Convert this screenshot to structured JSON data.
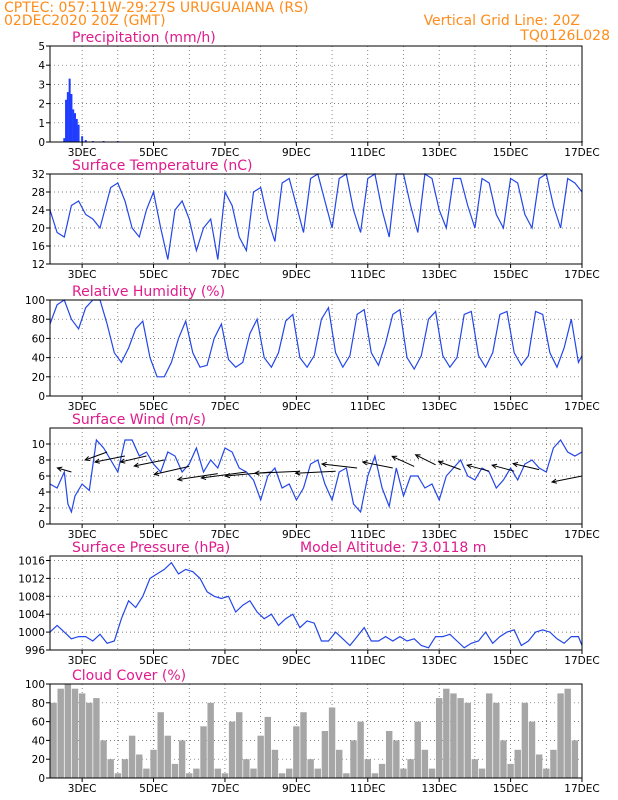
{
  "header": {
    "line1_left": "CPTEC:   057:11W-29:27S   URUGUAIANA (RS)",
    "line2_left": "02DEC2020 20Z (GMT)",
    "line1_right": "Vertical Grid Line: 20Z",
    "line2_right": "TQ0126L028"
  },
  "x_axis": {
    "ticks": [
      "3DEC",
      "5DEC",
      "7DEC",
      "9DEC",
      "11DEC",
      "13DEC",
      "15DEC",
      "17DEC"
    ],
    "tick_days": [
      3,
      5,
      7,
      9,
      11,
      13,
      15,
      17
    ],
    "start_day": 2.1,
    "end_day": 17
  },
  "chart_data": [
    {
      "type": "bar",
      "title": "Precipitation (mm/h)",
      "ylim": [
        0,
        5
      ],
      "yticks": [
        "0",
        "1",
        "2",
        "3",
        "4",
        "5"
      ],
      "color": "#1f3cff",
      "x": [
        2.5,
        2.55,
        2.6,
        2.65,
        2.7,
        2.75,
        2.8,
        2.85,
        2.9,
        3.0,
        3.1,
        3.3,
        3.6,
        4.0,
        5.0,
        8.0,
        11.0,
        14.0,
        17.0
      ],
      "values": [
        0.2,
        2.2,
        2.6,
        3.3,
        2.5,
        1.7,
        1.5,
        1.2,
        0.9,
        0.3,
        0.1,
        0.05,
        0.05,
        0.05,
        0.03,
        0.03,
        0.03,
        0.03,
        0.03
      ]
    },
    {
      "type": "line",
      "title": "Surface Temperature (nC)",
      "ylim": [
        12,
        32
      ],
      "yticks": [
        "12",
        "16",
        "20",
        "24",
        "28",
        "32"
      ],
      "color": "#2346e8",
      "x": [
        2.1,
        2.3,
        2.5,
        2.7,
        2.9,
        3.1,
        3.3,
        3.5,
        3.8,
        4.0,
        4.2,
        4.4,
        4.6,
        4.8,
        5.0,
        5.2,
        5.4,
        5.6,
        5.8,
        6.0,
        6.2,
        6.4,
        6.6,
        6.8,
        7.0,
        7.2,
        7.4,
        7.6,
        7.8,
        8.0,
        8.2,
        8.4,
        8.6,
        8.8,
        9.0,
        9.2,
        9.4,
        9.6,
        9.8,
        10.0,
        10.2,
        10.4,
        10.6,
        10.8,
        11.0,
        11.2,
        11.4,
        11.6,
        11.8,
        12.0,
        12.2,
        12.4,
        12.6,
        12.8,
        13.0,
        13.2,
        13.4,
        13.6,
        13.8,
        14.0,
        14.2,
        14.4,
        14.6,
        14.8,
        15.0,
        15.2,
        15.4,
        15.6,
        15.8,
        16.0,
        16.2,
        16.4,
        16.6,
        16.8,
        17.0
      ],
      "values": [
        24,
        19,
        18,
        25,
        26,
        23,
        22,
        20,
        29,
        30,
        26,
        20,
        18,
        24,
        28,
        20,
        13,
        24,
        26,
        22,
        15,
        20,
        22,
        13,
        28,
        25,
        18,
        15,
        28,
        29,
        22,
        17,
        30,
        31,
        25,
        19,
        31,
        32,
        26,
        20,
        31,
        32,
        24,
        19,
        31,
        32,
        24,
        18,
        32,
        32,
        25,
        19,
        32,
        31,
        24,
        20,
        31,
        31,
        25,
        20,
        31,
        30,
        23,
        20,
        31,
        30,
        23,
        20,
        31,
        32,
        25,
        20,
        31,
        30,
        28
      ]
    },
    {
      "type": "line",
      "title": "Relative Humidity (%)",
      "ylim": [
        0,
        100
      ],
      "yticks": [
        "0",
        "20",
        "40",
        "60",
        "80",
        "100"
      ],
      "color": "#2346e8",
      "x": [
        2.1,
        2.3,
        2.5,
        2.7,
        2.9,
        3.1,
        3.3,
        3.5,
        3.7,
        3.9,
        4.1,
        4.3,
        4.5,
        4.7,
        4.9,
        5.1,
        5.3,
        5.5,
        5.7,
        5.9,
        6.1,
        6.3,
        6.5,
        6.7,
        6.9,
        7.1,
        7.3,
        7.5,
        7.7,
        7.9,
        8.1,
        8.3,
        8.5,
        8.7,
        8.9,
        9.1,
        9.3,
        9.5,
        9.7,
        9.9,
        10.1,
        10.3,
        10.5,
        10.7,
        10.9,
        11.1,
        11.3,
        11.5,
        11.7,
        11.9,
        12.1,
        12.3,
        12.5,
        12.7,
        12.9,
        13.1,
        13.3,
        13.5,
        13.7,
        13.9,
        14.1,
        14.3,
        14.5,
        14.7,
        14.9,
        15.1,
        15.3,
        15.5,
        15.7,
        15.9,
        16.1,
        16.3,
        16.5,
        16.7,
        16.9,
        17.0
      ],
      "values": [
        75,
        95,
        100,
        80,
        70,
        92,
        100,
        100,
        75,
        45,
        35,
        50,
        70,
        78,
        40,
        20,
        20,
        35,
        60,
        78,
        45,
        30,
        32,
        60,
        75,
        38,
        30,
        35,
        65,
        80,
        40,
        30,
        45,
        78,
        85,
        40,
        30,
        42,
        80,
        92,
        45,
        30,
        42,
        85,
        90,
        45,
        32,
        55,
        85,
        90,
        40,
        28,
        42,
        80,
        88,
        42,
        30,
        40,
        85,
        88,
        42,
        30,
        45,
        85,
        88,
        45,
        32,
        42,
        88,
        85,
        45,
        30,
        50,
        80,
        35,
        42
      ]
    },
    {
      "type": "line",
      "title": "Surface Wind (m/s)",
      "ylim": [
        0,
        12
      ],
      "yticks": [
        "0",
        "2",
        "4",
        "6",
        "8",
        "10"
      ],
      "color": "#2346e8",
      "x": [
        2.1,
        2.3,
        2.5,
        2.6,
        2.7,
        2.8,
        3.0,
        3.2,
        3.4,
        3.6,
        3.8,
        4.0,
        4.2,
        4.4,
        4.6,
        4.8,
        5.0,
        5.2,
        5.4,
        5.6,
        5.8,
        6.0,
        6.2,
        6.4,
        6.6,
        6.8,
        7.0,
        7.2,
        7.4,
        7.6,
        7.8,
        8.0,
        8.2,
        8.4,
        8.6,
        8.8,
        9.0,
        9.2,
        9.4,
        9.6,
        9.8,
        10.0,
        10.2,
        10.4,
        10.6,
        10.8,
        11.0,
        11.2,
        11.4,
        11.6,
        11.8,
        12.0,
        12.2,
        12.4,
        12.6,
        12.8,
        13.0,
        13.2,
        13.4,
        13.6,
        13.8,
        14.0,
        14.2,
        14.4,
        14.6,
        14.8,
        15.0,
        15.2,
        15.4,
        15.6,
        15.8,
        16.0,
        16.2,
        16.4,
        16.6,
        16.8,
        17.0
      ],
      "values": [
        5,
        4.5,
        6.5,
        2.5,
        1.5,
        3.5,
        5,
        4.2,
        10.5,
        9.5,
        8,
        6.5,
        10.5,
        10.5,
        8.5,
        9,
        7.5,
        6.5,
        9,
        8.5,
        6.5,
        7.5,
        9.5,
        6.5,
        8,
        7,
        9.5,
        9,
        7,
        6.5,
        5.5,
        3,
        6,
        7,
        4.5,
        5,
        3,
        4.5,
        7.5,
        8,
        5,
        3,
        6.5,
        7,
        2.5,
        1.5,
        6,
        8.5,
        4.5,
        2.2,
        7,
        3.5,
        6,
        6,
        4.5,
        5,
        3,
        6,
        7,
        8,
        6,
        5.5,
        7,
        6.5,
        4.5,
        5.5,
        7,
        5.5,
        7.5,
        8,
        7,
        6.5,
        9.5,
        10.5,
        9,
        8.5,
        9
      ]
    },
    {
      "type": "line",
      "title": "Surface Pressure (hPa)",
      "annotation": "Model Altitude: 73.0118 m",
      "ylim": [
        996,
        1017
      ],
      "yticks": [
        "996",
        "1000",
        "1004",
        "1008",
        "1012",
        "1016"
      ],
      "color": "#2346e8",
      "x": [
        2.1,
        2.3,
        2.5,
        2.7,
        2.9,
        3.1,
        3.3,
        3.5,
        3.7,
        3.9,
        4.1,
        4.3,
        4.5,
        4.7,
        4.9,
        5.1,
        5.3,
        5.5,
        5.7,
        5.9,
        6.1,
        6.3,
        6.5,
        6.7,
        6.9,
        7.1,
        7.3,
        7.5,
        7.7,
        7.9,
        8.1,
        8.3,
        8.5,
        8.7,
        8.9,
        9.1,
        9.3,
        9.5,
        9.7,
        9.9,
        10.1,
        10.3,
        10.5,
        10.7,
        10.9,
        11.1,
        11.3,
        11.5,
        11.7,
        11.9,
        12.1,
        12.3,
        12.5,
        12.7,
        12.9,
        13.1,
        13.3,
        13.5,
        13.7,
        13.9,
        14.1,
        14.3,
        14.5,
        14.7,
        14.9,
        15.1,
        15.3,
        15.5,
        15.7,
        15.9,
        16.1,
        16.3,
        16.5,
        16.7,
        16.9,
        17.0
      ],
      "values": [
        1000,
        1001.5,
        1000,
        998.5,
        999,
        999,
        998,
        999.5,
        997.5,
        998,
        1003,
        1007,
        1005.5,
        1008,
        1012,
        1013,
        1014,
        1015.5,
        1013,
        1014,
        1013.5,
        1012,
        1009,
        1008,
        1007.5,
        1008,
        1004.5,
        1006,
        1007,
        1004.5,
        1003,
        1004,
        1001.5,
        1003,
        1004,
        1001,
        1002.5,
        1002,
        998,
        998,
        1000,
        998.5,
        997,
        999,
        1001,
        998,
        998,
        999,
        998,
        999,
        998,
        998.5,
        997,
        996.5,
        999,
        999,
        999.5,
        998,
        996.5,
        997.5,
        998,
        1000,
        997.5,
        999,
        1000,
        1000.5,
        997,
        998,
        1000,
        1000.5,
        1000,
        998.5,
        997.5,
        999,
        999,
        997
      ]
    },
    {
      "type": "bar",
      "title": "Cloud Cover (%)",
      "ylim": [
        0,
        100
      ],
      "yticks": [
        "0",
        "20",
        "40",
        "60",
        "80",
        "100"
      ],
      "color": "#a6a6a6",
      "x": [
        2.2,
        2.4,
        2.6,
        2.8,
        3.0,
        3.2,
        3.4,
        3.6,
        3.8,
        4.0,
        4.2,
        4.4,
        4.6,
        4.8,
        5.0,
        5.2,
        5.4,
        5.6,
        5.8,
        6.0,
        6.2,
        6.4,
        6.6,
        6.8,
        7.0,
        7.2,
        7.4,
        7.6,
        7.8,
        8.0,
        8.2,
        8.4,
        8.6,
        8.8,
        9.0,
        9.2,
        9.4,
        9.6,
        9.8,
        10.0,
        10.2,
        10.4,
        10.6,
        10.8,
        11.0,
        11.2,
        11.4,
        11.6,
        11.8,
        12.0,
        12.2,
        12.4,
        12.6,
        12.8,
        13.0,
        13.2,
        13.4,
        13.6,
        13.8,
        14.0,
        14.2,
        14.4,
        14.6,
        14.8,
        15.0,
        15.2,
        15.4,
        15.6,
        15.8,
        16.0,
        16.2,
        16.4,
        16.6,
        16.8
      ],
      "values": [
        80,
        95,
        100,
        95,
        90,
        80,
        85,
        40,
        20,
        5,
        20,
        45,
        25,
        10,
        30,
        70,
        45,
        15,
        40,
        5,
        10,
        55,
        80,
        10,
        5,
        60,
        70,
        20,
        10,
        45,
        65,
        30,
        5,
        10,
        55,
        70,
        20,
        10,
        50,
        75,
        30,
        5,
        40,
        60,
        20,
        5,
        15,
        50,
        40,
        10,
        20,
        60,
        30,
        10,
        85,
        95,
        90,
        85,
        80,
        20,
        10,
        90,
        80,
        40,
        15,
        30,
        80,
        60,
        25,
        10,
        30,
        90,
        95,
        40
      ]
    }
  ]
}
